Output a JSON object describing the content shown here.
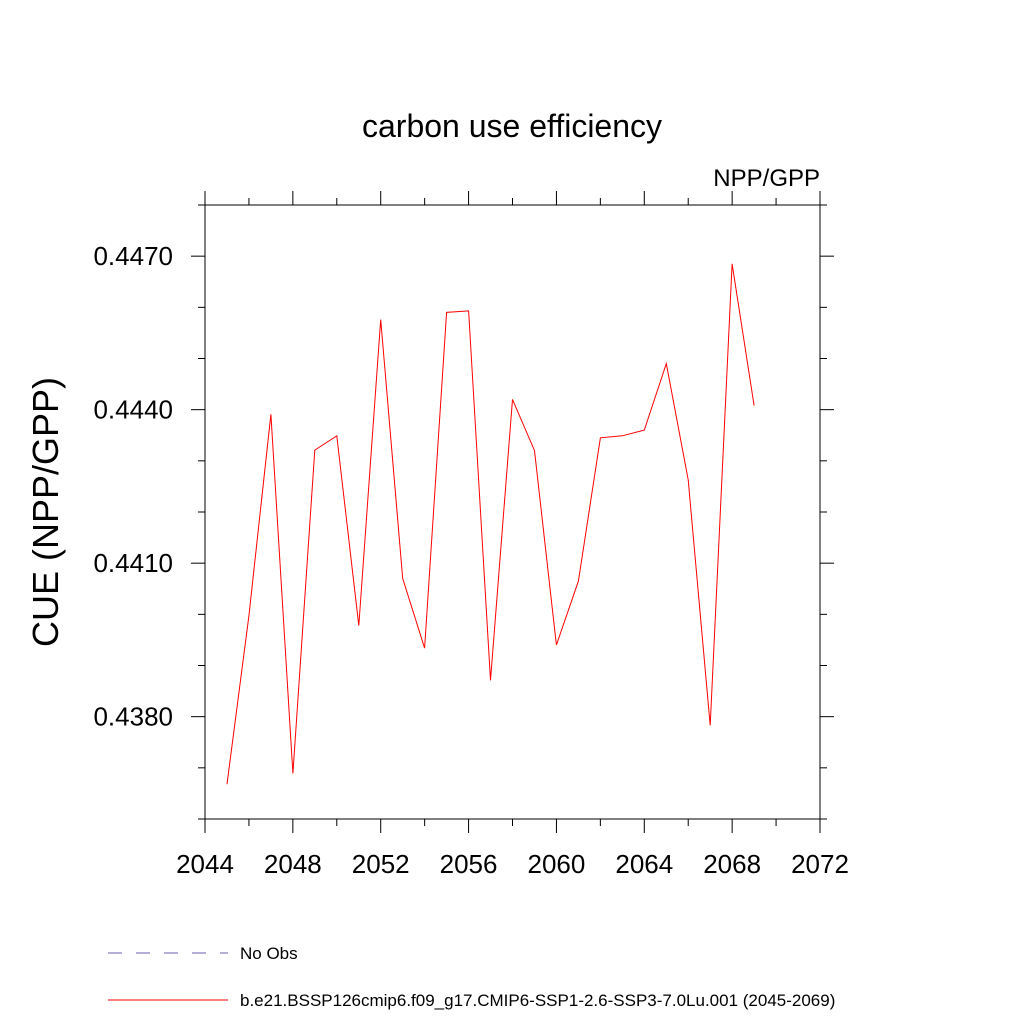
{
  "chart_data": {
    "type": "line",
    "title": "carbon use efficiency",
    "subtitle": "NPP/GPP",
    "xlabel": "",
    "ylabel": "CUE  (NPP/GPP)",
    "xlim": [
      2044,
      2072
    ],
    "ylim": [
      0.436,
      0.448
    ],
    "x_ticks": [
      2044,
      2048,
      2052,
      2056,
      2060,
      2064,
      2068,
      2072
    ],
    "x_tick_labels": [
      "2044",
      "2048",
      "2052",
      "2056",
      "2060",
      "2064",
      "2068",
      "2072"
    ],
    "y_ticks": [
      0.438,
      0.441,
      0.444,
      0.447
    ],
    "y_tick_labels": [
      "0.4380",
      "0.4410",
      "0.4440",
      "0.4470"
    ],
    "grid": false,
    "legend_position": "bottom",
    "series": [
      {
        "name": "b.e21.BSSP126cmip6.f09_g17.CMIP6-SSP1-2.6-SSP3-7.0Lu.001 (2045-2069)",
        "color": "#ff0000",
        "style": "solid",
        "x": [
          2045,
          2046,
          2047,
          2048,
          2049,
          2050,
          2051,
          2052,
          2053,
          2054,
          2055,
          2056,
          2057,
          2058,
          2059,
          2060,
          2061,
          2062,
          2063,
          2064,
          2065,
          2066,
          2067,
          2068,
          2069
        ],
        "y": [
          0.43668,
          0.43997,
          0.44391,
          0.43689,
          0.44321,
          0.44349,
          0.43978,
          0.44576,
          0.4407,
          0.43934,
          0.4459,
          0.44593,
          0.43871,
          0.4442,
          0.4432,
          0.4394,
          0.44065,
          0.44345,
          0.44349,
          0.4436,
          0.4449,
          0.44263,
          0.43783,
          0.44685,
          0.44408
        ]
      }
    ],
    "legend": [
      {
        "label": "No Obs",
        "color": "#6b5fb0",
        "style": "dashed"
      },
      {
        "label": "b.e21.BSSP126cmip6.f09_g17.CMIP6-SSP1-2.6-SSP3-7.0Lu.001 (2045-2069)",
        "color": "#ff0000",
        "style": "solid"
      }
    ]
  }
}
